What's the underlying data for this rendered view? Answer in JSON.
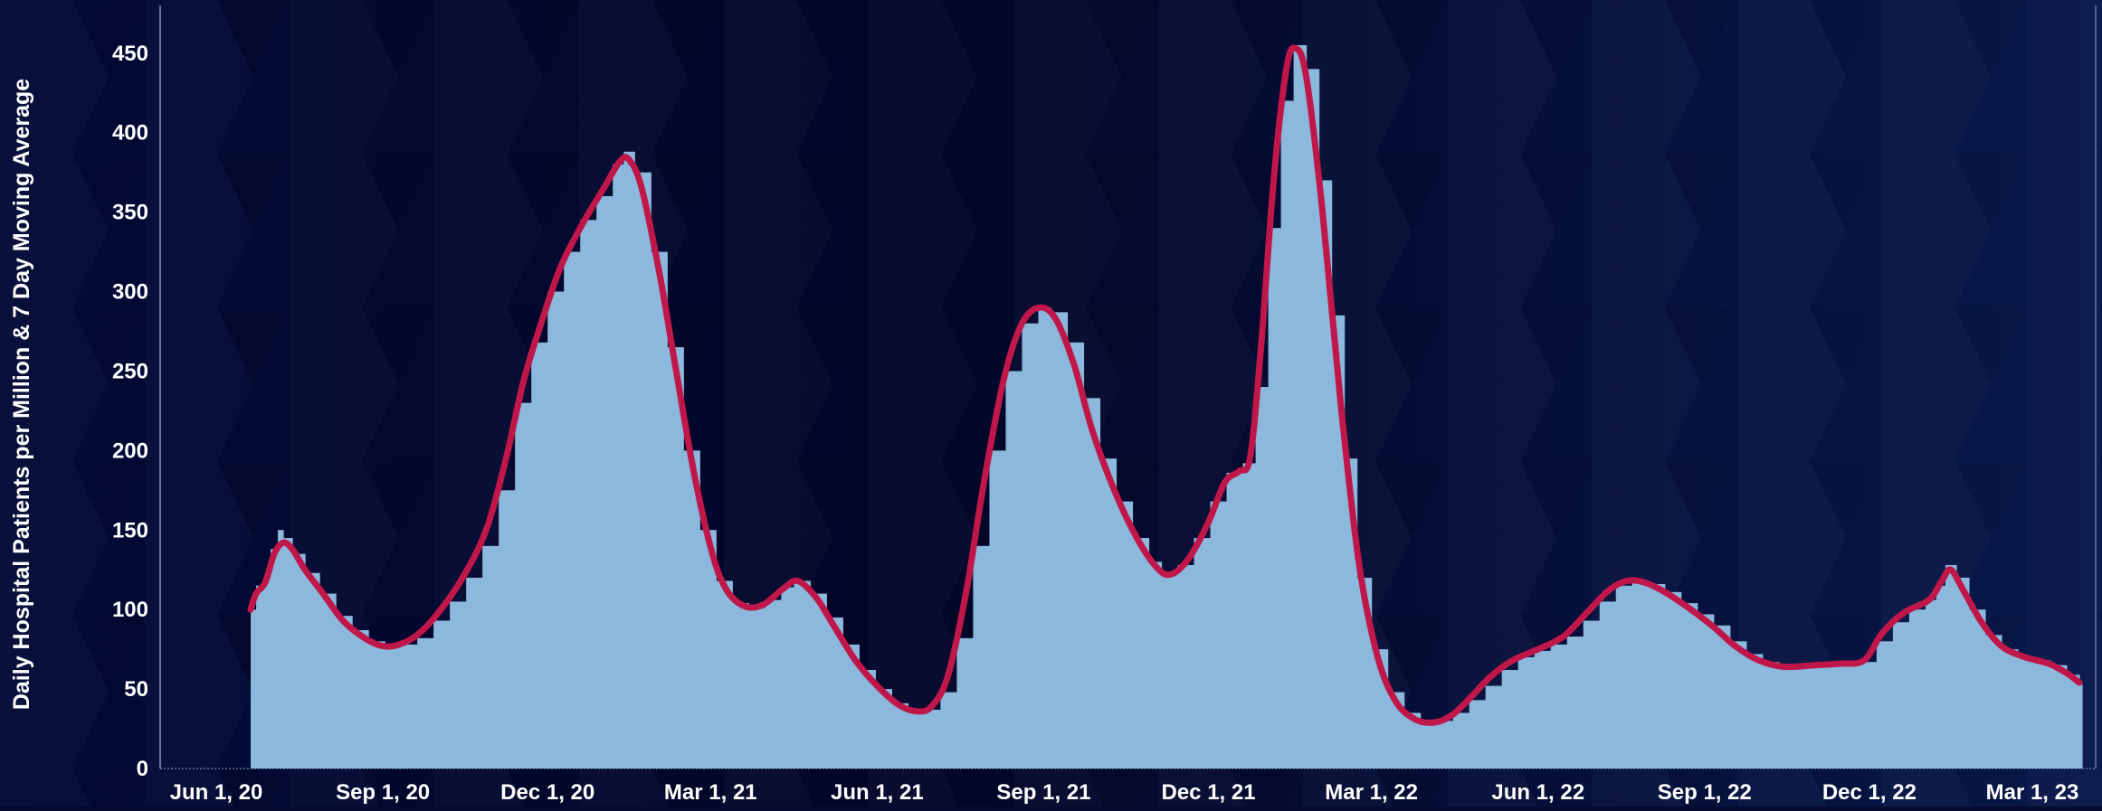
{
  "chart_data": {
    "type": "bar",
    "title": "",
    "xlabel": "",
    "ylabel": "Daily Hospital Patients per Million & 7 Day Moving Average",
    "ylim": [
      0,
      480
    ],
    "yticks": [
      0,
      50,
      100,
      150,
      200,
      250,
      300,
      350,
      400,
      450
    ],
    "xlim": [
      "2020-05-01",
      "2023-04-05"
    ],
    "xticks": [
      {
        "date": "2020-06-01",
        "label": "Jun 1, 20"
      },
      {
        "date": "2020-09-01",
        "label": "Sep 1, 20"
      },
      {
        "date": "2020-12-01",
        "label": "Dec 1, 20"
      },
      {
        "date": "2021-03-01",
        "label": "Mar 1, 21"
      },
      {
        "date": "2021-06-01",
        "label": "Jun 1, 21"
      },
      {
        "date": "2021-09-01",
        "label": "Sep 1, 21"
      },
      {
        "date": "2021-12-01",
        "label": "Dec 1, 21"
      },
      {
        "date": "2022-03-01",
        "label": "Mar 1, 22"
      },
      {
        "date": "2022-06-01",
        "label": "Jun 1, 22"
      },
      {
        "date": "2022-09-01",
        "label": "Sep 1, 22"
      },
      {
        "date": "2022-12-01",
        "label": "Dec 1, 22"
      },
      {
        "date": "2023-03-01",
        "label": "Mar 1, 23"
      }
    ],
    "grid": false,
    "series": [
      {
        "kind": "bars",
        "color": "#8cb8dc",
        "points": [
          [
            "2020-06-20",
            100
          ],
          [
            "2020-06-23",
            115
          ],
          [
            "2020-06-27",
            120
          ],
          [
            "2020-07-01",
            138
          ],
          [
            "2020-07-05",
            150
          ],
          [
            "2020-07-08",
            145
          ],
          [
            "2020-07-13",
            135
          ],
          [
            "2020-07-20",
            123
          ],
          [
            "2020-07-28",
            110
          ],
          [
            "2020-08-06",
            96
          ],
          [
            "2020-08-15",
            87
          ],
          [
            "2020-08-24",
            80
          ],
          [
            "2020-09-02",
            77
          ],
          [
            "2020-09-11",
            78
          ],
          [
            "2020-09-20",
            82
          ],
          [
            "2020-09-29",
            93
          ],
          [
            "2020-10-08",
            105
          ],
          [
            "2020-10-17",
            120
          ],
          [
            "2020-10-26",
            140
          ],
          [
            "2020-11-04",
            175
          ],
          [
            "2020-11-13",
            230
          ],
          [
            "2020-11-22",
            268
          ],
          [
            "2020-12-01",
            300
          ],
          [
            "2020-12-10",
            325
          ],
          [
            "2020-12-19",
            345
          ],
          [
            "2020-12-28",
            360
          ],
          [
            "2021-01-06",
            380
          ],
          [
            "2021-01-12",
            388
          ],
          [
            "2021-01-18",
            375
          ],
          [
            "2021-01-27",
            325
          ],
          [
            "2021-02-05",
            265
          ],
          [
            "2021-02-14",
            200
          ],
          [
            "2021-02-23",
            150
          ],
          [
            "2021-03-04",
            118
          ],
          [
            "2021-03-13",
            104
          ],
          [
            "2021-03-22",
            101
          ],
          [
            "2021-03-31",
            106
          ],
          [
            "2021-04-09",
            114
          ],
          [
            "2021-04-16",
            118
          ],
          [
            "2021-04-25",
            110
          ],
          [
            "2021-05-04",
            95
          ],
          [
            "2021-05-13",
            78
          ],
          [
            "2021-05-22",
            62
          ],
          [
            "2021-05-31",
            50
          ],
          [
            "2021-06-09",
            41
          ],
          [
            "2021-06-18",
            36
          ],
          [
            "2021-06-27",
            37
          ],
          [
            "2021-07-06",
            48
          ],
          [
            "2021-07-15",
            82
          ],
          [
            "2021-07-24",
            140
          ],
          [
            "2021-08-02",
            200
          ],
          [
            "2021-08-11",
            250
          ],
          [
            "2021-08-20",
            280
          ],
          [
            "2021-08-29",
            290
          ],
          [
            "2021-09-05",
            287
          ],
          [
            "2021-09-14",
            268
          ],
          [
            "2021-09-23",
            233
          ],
          [
            "2021-10-02",
            195
          ],
          [
            "2021-10-11",
            168
          ],
          [
            "2021-10-20",
            145
          ],
          [
            "2021-10-29",
            130
          ],
          [
            "2021-11-05",
            122
          ],
          [
            "2021-11-14",
            128
          ],
          [
            "2021-11-23",
            145
          ],
          [
            "2021-12-02",
            168
          ],
          [
            "2021-12-11",
            186
          ],
          [
            "2021-12-20",
            192
          ],
          [
            "2021-12-27",
            240
          ],
          [
            "2022-01-03",
            340
          ],
          [
            "2022-01-10",
            420
          ],
          [
            "2022-01-17",
            455
          ],
          [
            "2022-01-24",
            440
          ],
          [
            "2022-01-31",
            370
          ],
          [
            "2022-02-07",
            285
          ],
          [
            "2022-02-14",
            195
          ],
          [
            "2022-02-21",
            120
          ],
          [
            "2022-03-01",
            75
          ],
          [
            "2022-03-10",
            48
          ],
          [
            "2022-03-19",
            35
          ],
          [
            "2022-03-28",
            30
          ],
          [
            "2022-04-06",
            30
          ],
          [
            "2022-04-15",
            35
          ],
          [
            "2022-04-24",
            43
          ],
          [
            "2022-05-03",
            52
          ],
          [
            "2022-05-12",
            62
          ],
          [
            "2022-05-21",
            70
          ],
          [
            "2022-05-30",
            74
          ],
          [
            "2022-06-08",
            78
          ],
          [
            "2022-06-17",
            83
          ],
          [
            "2022-06-26",
            93
          ],
          [
            "2022-07-05",
            105
          ],
          [
            "2022-07-14",
            115
          ],
          [
            "2022-07-23",
            118
          ],
          [
            "2022-08-01",
            116
          ],
          [
            "2022-08-10",
            111
          ],
          [
            "2022-08-19",
            104
          ],
          [
            "2022-08-28",
            97
          ],
          [
            "2022-09-06",
            90
          ],
          [
            "2022-09-15",
            80
          ],
          [
            "2022-09-24",
            72
          ],
          [
            "2022-10-03",
            67
          ],
          [
            "2022-10-12",
            64
          ],
          [
            "2022-10-21",
            64
          ],
          [
            "2022-10-30",
            65
          ],
          [
            "2022-11-08",
            66
          ],
          [
            "2022-11-17",
            66
          ],
          [
            "2022-11-26",
            67
          ],
          [
            "2022-12-05",
            80
          ],
          [
            "2022-12-14",
            92
          ],
          [
            "2022-12-23",
            100
          ],
          [
            "2023-01-01",
            106
          ],
          [
            "2023-01-07",
            115
          ],
          [
            "2023-01-12",
            128
          ],
          [
            "2023-01-18",
            120
          ],
          [
            "2023-01-25",
            100
          ],
          [
            "2023-02-03",
            84
          ],
          [
            "2023-02-12",
            75
          ],
          [
            "2023-02-21",
            70
          ],
          [
            "2023-03-02",
            68
          ],
          [
            "2023-03-11",
            65
          ],
          [
            "2023-03-20",
            59
          ],
          [
            "2023-03-27",
            53
          ]
        ]
      },
      {
        "kind": "line",
        "color": "#c0174a",
        "points": [
          [
            "2020-06-20",
            100
          ],
          [
            "2020-06-23",
            110
          ],
          [
            "2020-06-28",
            117
          ],
          [
            "2020-07-03",
            135
          ],
          [
            "2020-07-08",
            142
          ],
          [
            "2020-07-13",
            138
          ],
          [
            "2020-07-20",
            125
          ],
          [
            "2020-07-30",
            110
          ],
          [
            "2020-08-10",
            93
          ],
          [
            "2020-08-22",
            82
          ],
          [
            "2020-09-01",
            77
          ],
          [
            "2020-09-10",
            78
          ],
          [
            "2020-09-20",
            84
          ],
          [
            "2020-10-01",
            97
          ],
          [
            "2020-10-15",
            120
          ],
          [
            "2020-10-28",
            150
          ],
          [
            "2020-11-08",
            195
          ],
          [
            "2020-11-18",
            245
          ],
          [
            "2020-11-28",
            282
          ],
          [
            "2020-12-08",
            315
          ],
          [
            "2020-12-20",
            342
          ],
          [
            "2021-01-01",
            365
          ],
          [
            "2021-01-10",
            382
          ],
          [
            "2021-01-15",
            383
          ],
          [
            "2021-01-22",
            365
          ],
          [
            "2021-02-01",
            310
          ],
          [
            "2021-02-10",
            250
          ],
          [
            "2021-02-20",
            185
          ],
          [
            "2021-03-02",
            135
          ],
          [
            "2021-03-10",
            112
          ],
          [
            "2021-03-20",
            102
          ],
          [
            "2021-03-30",
            103
          ],
          [
            "2021-04-10",
            113
          ],
          [
            "2021-04-18",
            118
          ],
          [
            "2021-04-28",
            108
          ],
          [
            "2021-05-08",
            90
          ],
          [
            "2021-05-20",
            68
          ],
          [
            "2021-06-01",
            52
          ],
          [
            "2021-06-13",
            40
          ],
          [
            "2021-06-23",
            36
          ],
          [
            "2021-07-01",
            39
          ],
          [
            "2021-07-10",
            58
          ],
          [
            "2021-07-20",
            110
          ],
          [
            "2021-07-30",
            180
          ],
          [
            "2021-08-10",
            245
          ],
          [
            "2021-08-20",
            280
          ],
          [
            "2021-08-30",
            290
          ],
          [
            "2021-09-08",
            282
          ],
          [
            "2021-09-18",
            253
          ],
          [
            "2021-09-28",
            212
          ],
          [
            "2021-10-10",
            175
          ],
          [
            "2021-10-22",
            146
          ],
          [
            "2021-11-02",
            127
          ],
          [
            "2021-11-10",
            122
          ],
          [
            "2021-11-20",
            132
          ],
          [
            "2021-12-01",
            155
          ],
          [
            "2021-12-10",
            180
          ],
          [
            "2021-12-18",
            187
          ],
          [
            "2021-12-24",
            196
          ],
          [
            "2021-12-30",
            265
          ],
          [
            "2022-01-06",
            370
          ],
          [
            "2022-01-13",
            440
          ],
          [
            "2022-01-18",
            453
          ],
          [
            "2022-01-24",
            435
          ],
          [
            "2022-02-02",
            350
          ],
          [
            "2022-02-12",
            230
          ],
          [
            "2022-02-22",
            130
          ],
          [
            "2022-03-04",
            72
          ],
          [
            "2022-03-14",
            43
          ],
          [
            "2022-03-25",
            31
          ],
          [
            "2022-04-05",
            29
          ],
          [
            "2022-04-15",
            34
          ],
          [
            "2022-04-25",
            45
          ],
          [
            "2022-05-06",
            58
          ],
          [
            "2022-05-18",
            68
          ],
          [
            "2022-06-01",
            75
          ],
          [
            "2022-06-15",
            83
          ],
          [
            "2022-06-28",
            98
          ],
          [
            "2022-07-10",
            112
          ],
          [
            "2022-07-20",
            118
          ],
          [
            "2022-07-30",
            117
          ],
          [
            "2022-08-10",
            111
          ],
          [
            "2022-08-22",
            102
          ],
          [
            "2022-09-05",
            90
          ],
          [
            "2022-09-18",
            77
          ],
          [
            "2022-10-01",
            68
          ],
          [
            "2022-10-15",
            64
          ],
          [
            "2022-11-01",
            65
          ],
          [
            "2022-11-15",
            66
          ],
          [
            "2022-11-28",
            68
          ],
          [
            "2022-12-08",
            85
          ],
          [
            "2022-12-20",
            98
          ],
          [
            "2023-01-03",
            106
          ],
          [
            "2023-01-10",
            118
          ],
          [
            "2023-01-15",
            125
          ],
          [
            "2023-01-22",
            112
          ],
          [
            "2023-02-01",
            92
          ],
          [
            "2023-02-12",
            77
          ],
          [
            "2023-02-25",
            70
          ],
          [
            "2023-03-10",
            66
          ],
          [
            "2023-03-20",
            60
          ],
          [
            "2023-03-27",
            54
          ]
        ]
      }
    ]
  }
}
